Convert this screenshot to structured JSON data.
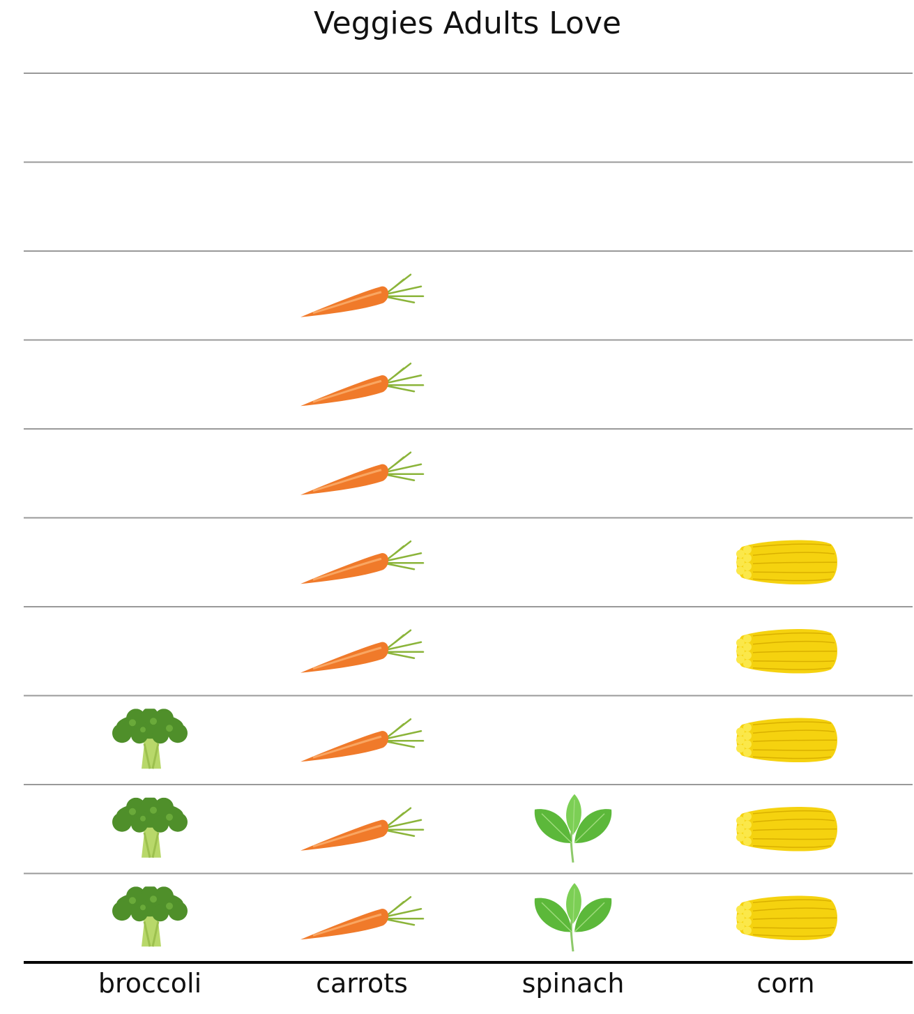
{
  "chart_data": {
    "type": "bar",
    "style": "pictograph",
    "title": "Veggies Adults Love",
    "categories": [
      "broccoli",
      "carrots",
      "spinach",
      "corn"
    ],
    "values": [
      3,
      8,
      2,
      5
    ],
    "icons": [
      "broccoli-icon",
      "carrot-icon",
      "spinach-icon",
      "corn-icon"
    ],
    "ylim": [
      0,
      10
    ],
    "grid": true,
    "colors": {
      "grid": "#999999",
      "axis": "#000000",
      "carrot": "#f07a2a",
      "broccoli": "#4f8f2a",
      "spinach": "#5cb83a",
      "corn": "#f5d20f"
    }
  }
}
